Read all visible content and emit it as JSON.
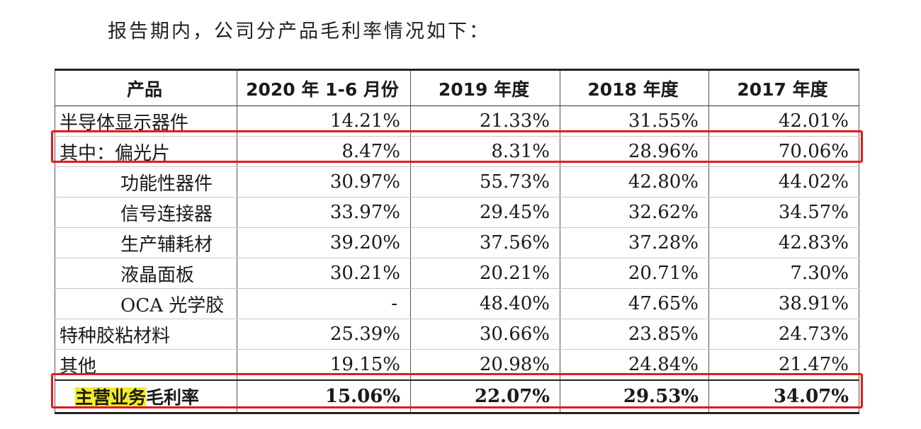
{
  "intro_text": "报告期内，公司分产品毛利率情况如下：",
  "table": {
    "headers": [
      "产品",
      "2020 年 1-6 月份",
      "2019 年度",
      "2018 年度",
      "2017 年度"
    ],
    "rows": [
      {
        "name": "半导体显示器件",
        "values": [
          "14.21%",
          "21.33%",
          "31.55%",
          "42.01%"
        ]
      },
      {
        "name": "其中：偏光片",
        "values": [
          "8.47%",
          "8.31%",
          "28.96%",
          "70.06%"
        ]
      },
      {
        "name": "功能性器件",
        "values": [
          "30.97%",
          "55.73%",
          "42.80%",
          "44.02%"
        ]
      },
      {
        "name": "信号连接器",
        "values": [
          "33.97%",
          "29.45%",
          "32.62%",
          "34.57%"
        ]
      },
      {
        "name": "生产辅耗材",
        "values": [
          "39.20%",
          "37.56%",
          "37.28%",
          "42.83%"
        ]
      },
      {
        "name": "液晶面板",
        "values": [
          "30.21%",
          "20.21%",
          "20.71%",
          "7.30%"
        ]
      },
      {
        "name": "OCA 光学胶",
        "values": [
          "-",
          "48.40%",
          "47.65%",
          "38.91%"
        ]
      },
      {
        "name": "特种胶粘材料",
        "values": [
          "25.39%",
          "30.66%",
          "23.85%",
          "24.73%"
        ]
      },
      {
        "name": "其他",
        "values": [
          "19.15%",
          "20.98%",
          "24.84%",
          "21.47%"
        ]
      }
    ],
    "total": {
      "name_highlight": "主营业务",
      "name_rest": "毛利率",
      "values": [
        "15.06%",
        "22.07%",
        "29.53%",
        "34.07%"
      ]
    }
  },
  "colors": {
    "annotation_box": "#e41a1a",
    "highlight": "#f4ee23"
  }
}
